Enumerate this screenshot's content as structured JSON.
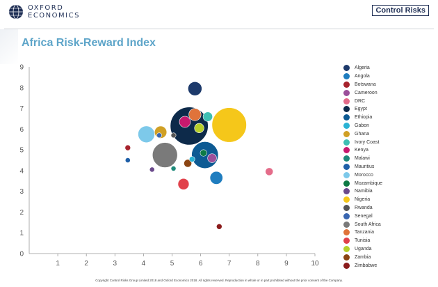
{
  "header": {
    "logo_left_line1": "OXFORD",
    "logo_left_line2": "ECONOMICS",
    "logo_right": "Control Risks"
  },
  "footer": {
    "copyright": "Copyright Control Risks Group Limited 2018 and Oxford Economics 2018. All rights reserved. Reproduction in whole or in part prohibited without the prior consent of the Company."
  },
  "colors": {
    "title": "#5ea5c9",
    "navy": "#1f2f55"
  },
  "chart_data": {
    "type": "bubble",
    "title": "Africa Risk-Reward Index",
    "xlabel": "",
    "ylabel": "",
    "xlim": [
      0,
      10
    ],
    "ylim": [
      0,
      9
    ],
    "xticks": [
      "1",
      "2",
      "3",
      "4",
      "5",
      "6",
      "7",
      "8",
      "9",
      "10"
    ],
    "yticks": [
      "0",
      "1",
      "2",
      "3",
      "4",
      "5",
      "6",
      "7",
      "8",
      "9"
    ],
    "grid": false,
    "legend_position": "right",
    "series": [
      {
        "name": "Algeria",
        "color": "#1d3a6b",
        "x": 5.8,
        "y": 7.95,
        "size": 2.5
      },
      {
        "name": "Angola",
        "color": "#1f7dbf",
        "x": 6.55,
        "y": 3.65,
        "size": 2.3
      },
      {
        "name": "Botswana",
        "color": "#a7232d",
        "x": 3.45,
        "y": 5.1,
        "size": 1
      },
      {
        "name": "Cameroon",
        "color": "#9b4f9a",
        "x": 6.4,
        "y": 4.6,
        "size": 1.6
      },
      {
        "name": "DRC",
        "color": "#e46c8a",
        "x": 8.4,
        "y": 3.95,
        "size": 1.4
      },
      {
        "name": "Egypt",
        "color": "#0d2a4a",
        "x": 5.6,
        "y": 6.15,
        "size": 6.8
      },
      {
        "name": "Ethiopia",
        "color": "#0d5a93",
        "x": 6.15,
        "y": 4.75,
        "size": 4.8
      },
      {
        "name": "Gabon",
        "color": "#2ab3d4",
        "x": 5.7,
        "y": 4.55,
        "size": 1
      },
      {
        "name": "Ghana",
        "color": "#d0a025",
        "x": 4.6,
        "y": 5.85,
        "size": 2.2
      },
      {
        "name": "Ivory Coast",
        "color": "#3fbfb3",
        "x": 6.25,
        "y": 6.6,
        "size": 1.7
      },
      {
        "name": "Kenya",
        "color": "#c8196e",
        "x": 5.45,
        "y": 6.35,
        "size": 2
      },
      {
        "name": "Malawi",
        "color": "#1e8a7a",
        "x": 5.05,
        "y": 4.1,
        "size": 0.9
      },
      {
        "name": "Mauritius",
        "color": "#1f5fa8",
        "x": 3.45,
        "y": 4.5,
        "size": 0.9
      },
      {
        "name": "Morocco",
        "color": "#7dc9ea",
        "x": 4.1,
        "y": 5.75,
        "size": 3
      },
      {
        "name": "Mozambique",
        "color": "#0e7a45",
        "x": 6.1,
        "y": 4.85,
        "size": 1.2
      },
      {
        "name": "Namibia",
        "color": "#6b4a8c",
        "x": 4.3,
        "y": 4.05,
        "size": 0.9
      },
      {
        "name": "Nigeria",
        "color": "#f5c71a",
        "x": 7.0,
        "y": 6.2,
        "size": 6.2
      },
      {
        "name": "Rwanda",
        "color": "#555555",
        "x": 5.05,
        "y": 5.7,
        "size": 0.9
      },
      {
        "name": "Senegal",
        "color": "#3a67b1",
        "x": 4.55,
        "y": 5.7,
        "size": 0.9
      },
      {
        "name": "South Africa",
        "color": "#7a7a7a",
        "x": 4.75,
        "y": 4.75,
        "size": 4.5
      },
      {
        "name": "Tanzania",
        "color": "#e0733a",
        "x": 5.8,
        "y": 6.7,
        "size": 2.2
      },
      {
        "name": "Tunisia",
        "color": "#e1414b",
        "x": 5.4,
        "y": 3.35,
        "size": 2
      },
      {
        "name": "Uganda",
        "color": "#b6cf2a",
        "x": 5.95,
        "y": 6.05,
        "size": 1.7
      },
      {
        "name": "Zambia",
        "color": "#8b4513",
        "x": 5.55,
        "y": 4.35,
        "size": 1.4
      },
      {
        "name": "Zimbabwe",
        "color": "#8b1c1c",
        "x": 6.65,
        "y": 1.3,
        "size": 1
      }
    ]
  }
}
